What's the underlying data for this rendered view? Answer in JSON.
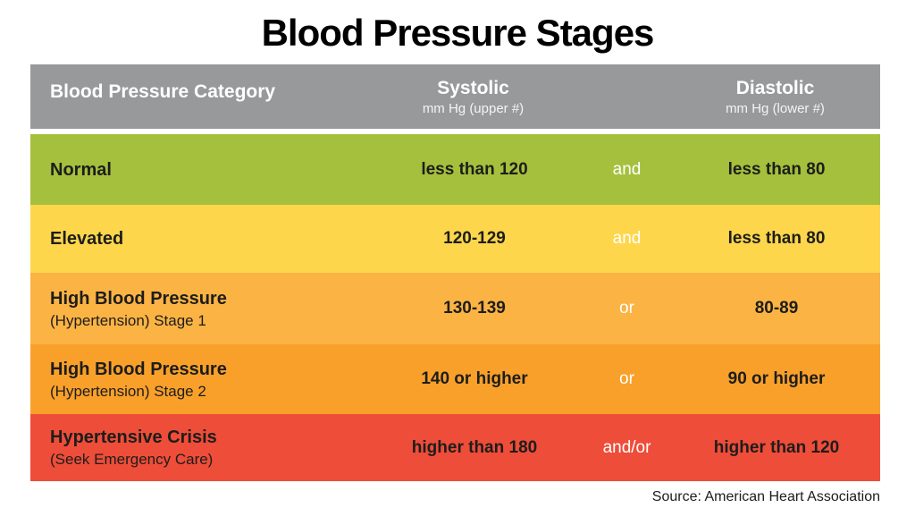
{
  "page": {
    "title": "Blood Pressure Stages",
    "source": "Source: American Heart Association"
  },
  "header": {
    "category": "Blood Pressure Category",
    "systolic_label": "Systolic",
    "systolic_sub": "mm Hg (upper #)",
    "diastolic_label": "Diastolic",
    "diastolic_sub": "mm Hg (lower #)"
  },
  "colors": {
    "header_bg": "#98999b",
    "header_text": "#ffffff",
    "row_text": "#1d1d1b",
    "connector_text": "#ffffff",
    "normal_green": "#a5c03d",
    "elevated_yellow": "#fdd64c",
    "stage1_orange": "#fbb344",
    "stage2_orange": "#f9a02b",
    "crisis_red": "#ee4d39"
  },
  "chart_data": {
    "type": "table",
    "title": "Blood Pressure Stages",
    "columns": [
      "Blood Pressure Category",
      "Systolic mm Hg (upper #)",
      "",
      "Diastolic mm Hg (lower #)"
    ],
    "rows": [
      {
        "category": "Normal",
        "subcategory": "",
        "systolic": "less than 120",
        "connector": "and",
        "diastolic": "less than 80",
        "color": "#a5c03d"
      },
      {
        "category": "Elevated",
        "subcategory": "",
        "systolic": "120-129",
        "connector": "and",
        "diastolic": "less than 80",
        "color": "#fdd64c"
      },
      {
        "category": "High Blood Pressure",
        "subcategory": "(Hypertension) Stage 1",
        "systolic": "130-139",
        "connector": "or",
        "diastolic": "80-89",
        "color": "#fbb344"
      },
      {
        "category": "High Blood Pressure",
        "subcategory": "(Hypertension) Stage 2",
        "systolic": "140 or higher",
        "connector": "or",
        "diastolic": "90 or higher",
        "color": "#f9a02b"
      },
      {
        "category": "Hypertensive Crisis",
        "subcategory": "(Seek Emergency Care)",
        "systolic": "higher than 180",
        "connector": "and/or",
        "diastolic": "higher than 120",
        "color": "#ee4d39"
      }
    ],
    "source": "Source: American Heart Association"
  }
}
